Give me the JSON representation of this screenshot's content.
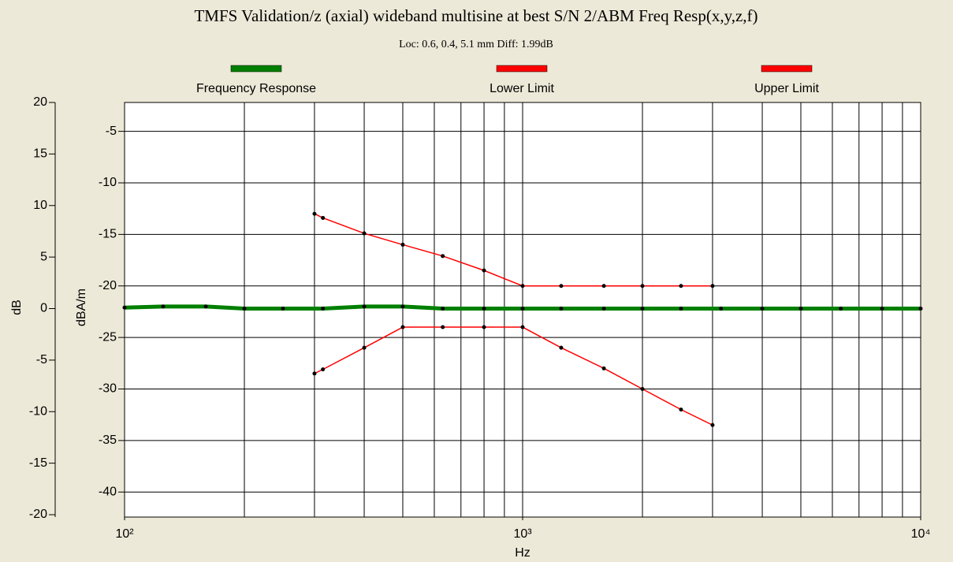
{
  "chart_data": {
    "type": "line",
    "title": "TMFS Validation/z (axial) wideband multisine at best S/N 2/ABM Freq Resp(x,y,z,f)",
    "subtitle": "Loc: 0.6, 0.4, 5.1 mm Diff: 1.99dB",
    "xlabel": "Hz",
    "ylabel": "dB",
    "y2label": "dBA/m",
    "xscale": "log",
    "xlim": [
      100,
      10000
    ],
    "xticks": [
      {
        "value": 100,
        "label": "10²"
      },
      {
        "value": 1000,
        "label": "10³"
      },
      {
        "value": 10000,
        "label": "10⁴"
      }
    ],
    "xgrid": [
      200,
      300,
      400,
      500,
      600,
      700,
      800,
      900,
      2000,
      3000,
      4000,
      5000,
      6000,
      7000,
      8000,
      9000
    ],
    "ylim": [
      -20,
      20
    ],
    "yticks": [
      20,
      15,
      10,
      5,
      0,
      -5,
      -10,
      -15,
      -20
    ],
    "y2lim": [
      -42.2,
      -2.2
    ],
    "y2ticks": [
      -5,
      -10,
      -15,
      -20,
      -25,
      -30,
      -35,
      -40
    ],
    "grid": true,
    "legend": "top",
    "series": [
      {
        "name": "Frequency Response",
        "color": "#008000",
        "axis": "y2",
        "x": [
          100,
          125,
          160,
          200,
          250,
          315,
          400,
          500,
          630,
          800,
          1000,
          1250,
          1600,
          2000,
          2500,
          3150,
          4000,
          5000,
          6300,
          8000,
          10000
        ],
        "values": [
          -22.1,
          -22.0,
          -22.0,
          -22.2,
          -22.2,
          -22.2,
          -22.0,
          -22.0,
          -22.2,
          -22.2,
          -22.2,
          -22.2,
          -22.2,
          -22.2,
          -22.2,
          -22.2,
          -22.2,
          -22.2,
          -22.2,
          -22.2,
          -22.2
        ]
      },
      {
        "name": "Lower Limit",
        "color": "#ff0000",
        "axis": "y2",
        "x": [
          300,
          315,
          400,
          500,
          630,
          800,
          1000,
          1250,
          1600,
          2000,
          2500,
          3000
        ],
        "values": [
          -28.5,
          -28.1,
          -26,
          -24,
          -24,
          -24,
          -24,
          -26,
          -28,
          -30,
          -32,
          -33.5
        ]
      },
      {
        "name": "Upper Limit",
        "color": "#ff0000",
        "axis": "y2",
        "x": [
          300,
          315,
          400,
          500,
          630,
          800,
          1000,
          1250,
          1600,
          2000,
          2500,
          3000
        ],
        "values": [
          -13,
          -13.4,
          -14.9,
          -16,
          -17.1,
          -18.5,
          -20,
          -20,
          -20,
          -20,
          -20,
          -20
        ]
      }
    ]
  }
}
